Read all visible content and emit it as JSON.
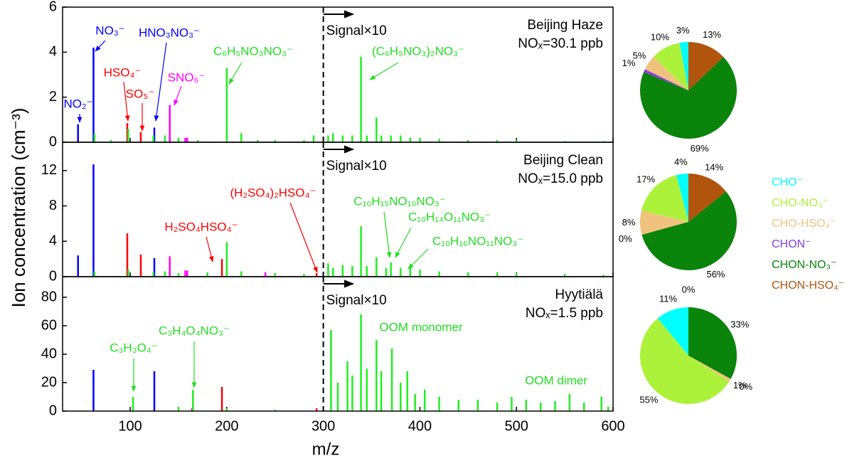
{
  "chart_data": [
    {
      "type": "stem",
      "x_label": "m/z",
      "y_label": "Ion concentration (cm⁻³)",
      "xlim": [
        30,
        600
      ],
      "xticks": [
        100,
        200,
        300,
        400,
        500,
        600
      ],
      "divider_x": 300,
      "panels": [
        {
          "title": "Beijing Haze",
          "subtitle": "NOₓ=30.1 ppb",
          "note": "Signal×10",
          "ylim": [
            0,
            6
          ],
          "yticks": [
            0,
            2,
            4,
            6
          ],
          "series": [
            {
              "color": "#0000ff",
              "x": [
                46,
                62,
                125
              ],
              "values": [
                0.8,
                4.2,
                0.65
              ]
            },
            {
              "color": "#ff0000",
              "x": [
                97,
                111
              ],
              "values": [
                0.85,
                0.45
              ]
            },
            {
              "color": "#ff00ff",
              "x": [
                141,
                157,
                159
              ],
              "values": [
                1.65,
                0.2,
                0.2
              ]
            },
            {
              "color": "#22ee22",
              "x": [
                63,
                80,
                98,
                124,
                136,
                150,
                170,
                200,
                215,
                232,
                250,
                280,
                290,
                305,
                310,
                320,
                330,
                339,
                345,
                355,
                360,
                370,
                380,
                390,
                400,
                420,
                450,
                480,
                500,
                550,
                590
              ],
              "values": [
                0.4,
                0.1,
                0.6,
                0.3,
                0.3,
                0.2,
                0.1,
                3.3,
                0.4,
                0.1,
                0.1,
                0.1,
                0.3,
                0.3,
                0.4,
                0.3,
                0.3,
                3.8,
                0.3,
                1.1,
                0.3,
                0.3,
                0.3,
                0.2,
                0.2,
                0.15,
                0.1,
                0.1,
                0.1,
                0.05,
                0.05
              ]
            }
          ],
          "labels": [
            {
              "text": "NO₃⁻",
              "color": "#0000ff"
            },
            {
              "text": "HNO₃NO₃⁻",
              "color": "#0000ff"
            },
            {
              "text": "NO₂⁻",
              "color": "#0000ff"
            },
            {
              "text": "HSO₄⁻",
              "color": "#ff0000"
            },
            {
              "text": "SO₅⁻",
              "color": "#ff0000"
            },
            {
              "text": "SNO₆⁻",
              "color": "#ff00ff"
            },
            {
              "text": "C₆H₅NO₃NO₃⁻",
              "color": "#22dd22"
            },
            {
              "text": "(C₆H₅NO₃)₂NO₃⁻",
              "color": "#22dd22"
            }
          ]
        },
        {
          "title": "Beijing Clean",
          "subtitle": "NOₓ=15.0 ppb",
          "note": "Signal×10",
          "ylim": [
            0,
            15.2
          ],
          "yticks": [
            0,
            4,
            8,
            12
          ],
          "series": [
            {
              "color": "#0000ff",
              "x": [
                46,
                62,
                125
              ],
              "values": [
                2.4,
                12.7,
                2.1
              ]
            },
            {
              "color": "#ff0000",
              "x": [
                97,
                111,
                195,
                293
              ],
              "values": [
                4.9,
                2.5,
                2.0,
                0.4
              ]
            },
            {
              "color": "#ff00ff",
              "x": [
                141,
                157,
                159,
                240
              ],
              "values": [
                2.3,
                0.7,
                0.7,
                0.5
              ]
            },
            {
              "color": "#22ee22",
              "x": [
                63,
                98,
                124,
                136,
                150,
                180,
                200,
                215,
                250,
                280,
                305,
                310,
                320,
                330,
                339,
                345,
                355,
                365,
                370,
                380,
                390,
                400,
                420,
                450,
                480,
                500,
                550,
                590
              ],
              "values": [
                0.6,
                0.8,
                0.5,
                0.6,
                0.4,
                0.5,
                3.9,
                0.6,
                0.4,
                0.3,
                1.5,
                1.0,
                1.3,
                1.2,
                5.7,
                1.2,
                2.2,
                1.0,
                1.6,
                1.0,
                1.1,
                0.8,
                0.6,
                0.5,
                0.5,
                0.4,
                0.3,
                0.2
              ]
            }
          ],
          "labels": [
            {
              "text": "(H₂SO₄)₂HSO₄⁻",
              "color": "#ff0000"
            },
            {
              "text": "H₂SO₄HSO₄⁻",
              "color": "#ff0000"
            },
            {
              "text": "C₁₀H₁₅NO₁₀NO₃⁻",
              "color": "#22dd22"
            },
            {
              "text": "C₁₀H₁₄O₁₁NO₃⁻",
              "color": "#22dd22"
            },
            {
              "text": "C₁₀H₁₆NO₁₁NO₃⁻",
              "color": "#22dd22"
            }
          ]
        },
        {
          "title": "Hyytiälä",
          "subtitle": "NOₓ=1.5 ppb",
          "note": "Signal×10",
          "ylim": [
            0,
            94.5
          ],
          "yticks": [
            0,
            20,
            40,
            60,
            80
          ],
          "series": [
            {
              "color": "#0000ff",
              "x": [
                62,
                125
              ],
              "values": [
                29,
                28
              ]
            },
            {
              "color": "#ff0000",
              "x": [
                195,
                293
              ],
              "values": [
                17,
                2
              ]
            },
            {
              "color": "#ff00ff",
              "x": [
                164
              ],
              "values": [
                2
              ]
            },
            {
              "color": "#22ee22",
              "x": [
                103,
                150,
                165,
                200,
                250,
                308,
                315,
                325,
                330,
                339,
                345,
                355,
                360,
                371,
                380,
                387,
                395,
                405,
                420,
                440,
                460,
                480,
                495,
                510,
                525,
                540,
                555,
                570,
                588,
                595
              ],
              "values": [
                10,
                3,
                15,
                2,
                1,
                57,
                20,
                35,
                25,
                68,
                30,
                50,
                28,
                44,
                20,
                28,
                12,
                15,
                10,
                8,
                8,
                6,
                10,
                8,
                6,
                7,
                12,
                6,
                10,
                3
              ]
            }
          ],
          "labels": [
            {
              "text": "C₃H₃O₄⁻",
              "color": "#22dd22"
            },
            {
              "text": "C₃H₄O₄NO₃⁻",
              "color": "#22dd22"
            },
            {
              "text": "OOM monomer",
              "color": "#22dd22"
            },
            {
              "text": "OOM dimer",
              "color": "#22dd22"
            }
          ]
        }
      ]
    },
    {
      "type": "pie",
      "categories": [
        "CHO⁻",
        "CHO-NO₃⁻",
        "CHO-HSO₄⁻",
        "CHON⁻",
        "CHON-NO₃⁻",
        "CHON-HSO₄⁻"
      ],
      "colors": [
        "#00ffff",
        "#adf23a",
        "#f0c27e",
        "#8a3ee0",
        "#0a840a",
        "#b0540e"
      ],
      "pies": [
        {
          "values": [
            3,
            10,
            5,
            1,
            69,
            13
          ],
          "value_labels": [
            "3%",
            "10%",
            "5%",
            "1%",
            "69%",
            "13%"
          ]
        },
        {
          "values": [
            4,
            17,
            8,
            0,
            56,
            14
          ],
          "value_labels": [
            "4%",
            "17%",
            "8%",
            "0%",
            "56%",
            "14%"
          ]
        },
        {
          "values": [
            11,
            55,
            1,
            0,
            33,
            0
          ],
          "value_labels": [
            "11%",
            "55%",
            "1%",
            "0%",
            "33%",
            "0%"
          ]
        }
      ]
    }
  ]
}
